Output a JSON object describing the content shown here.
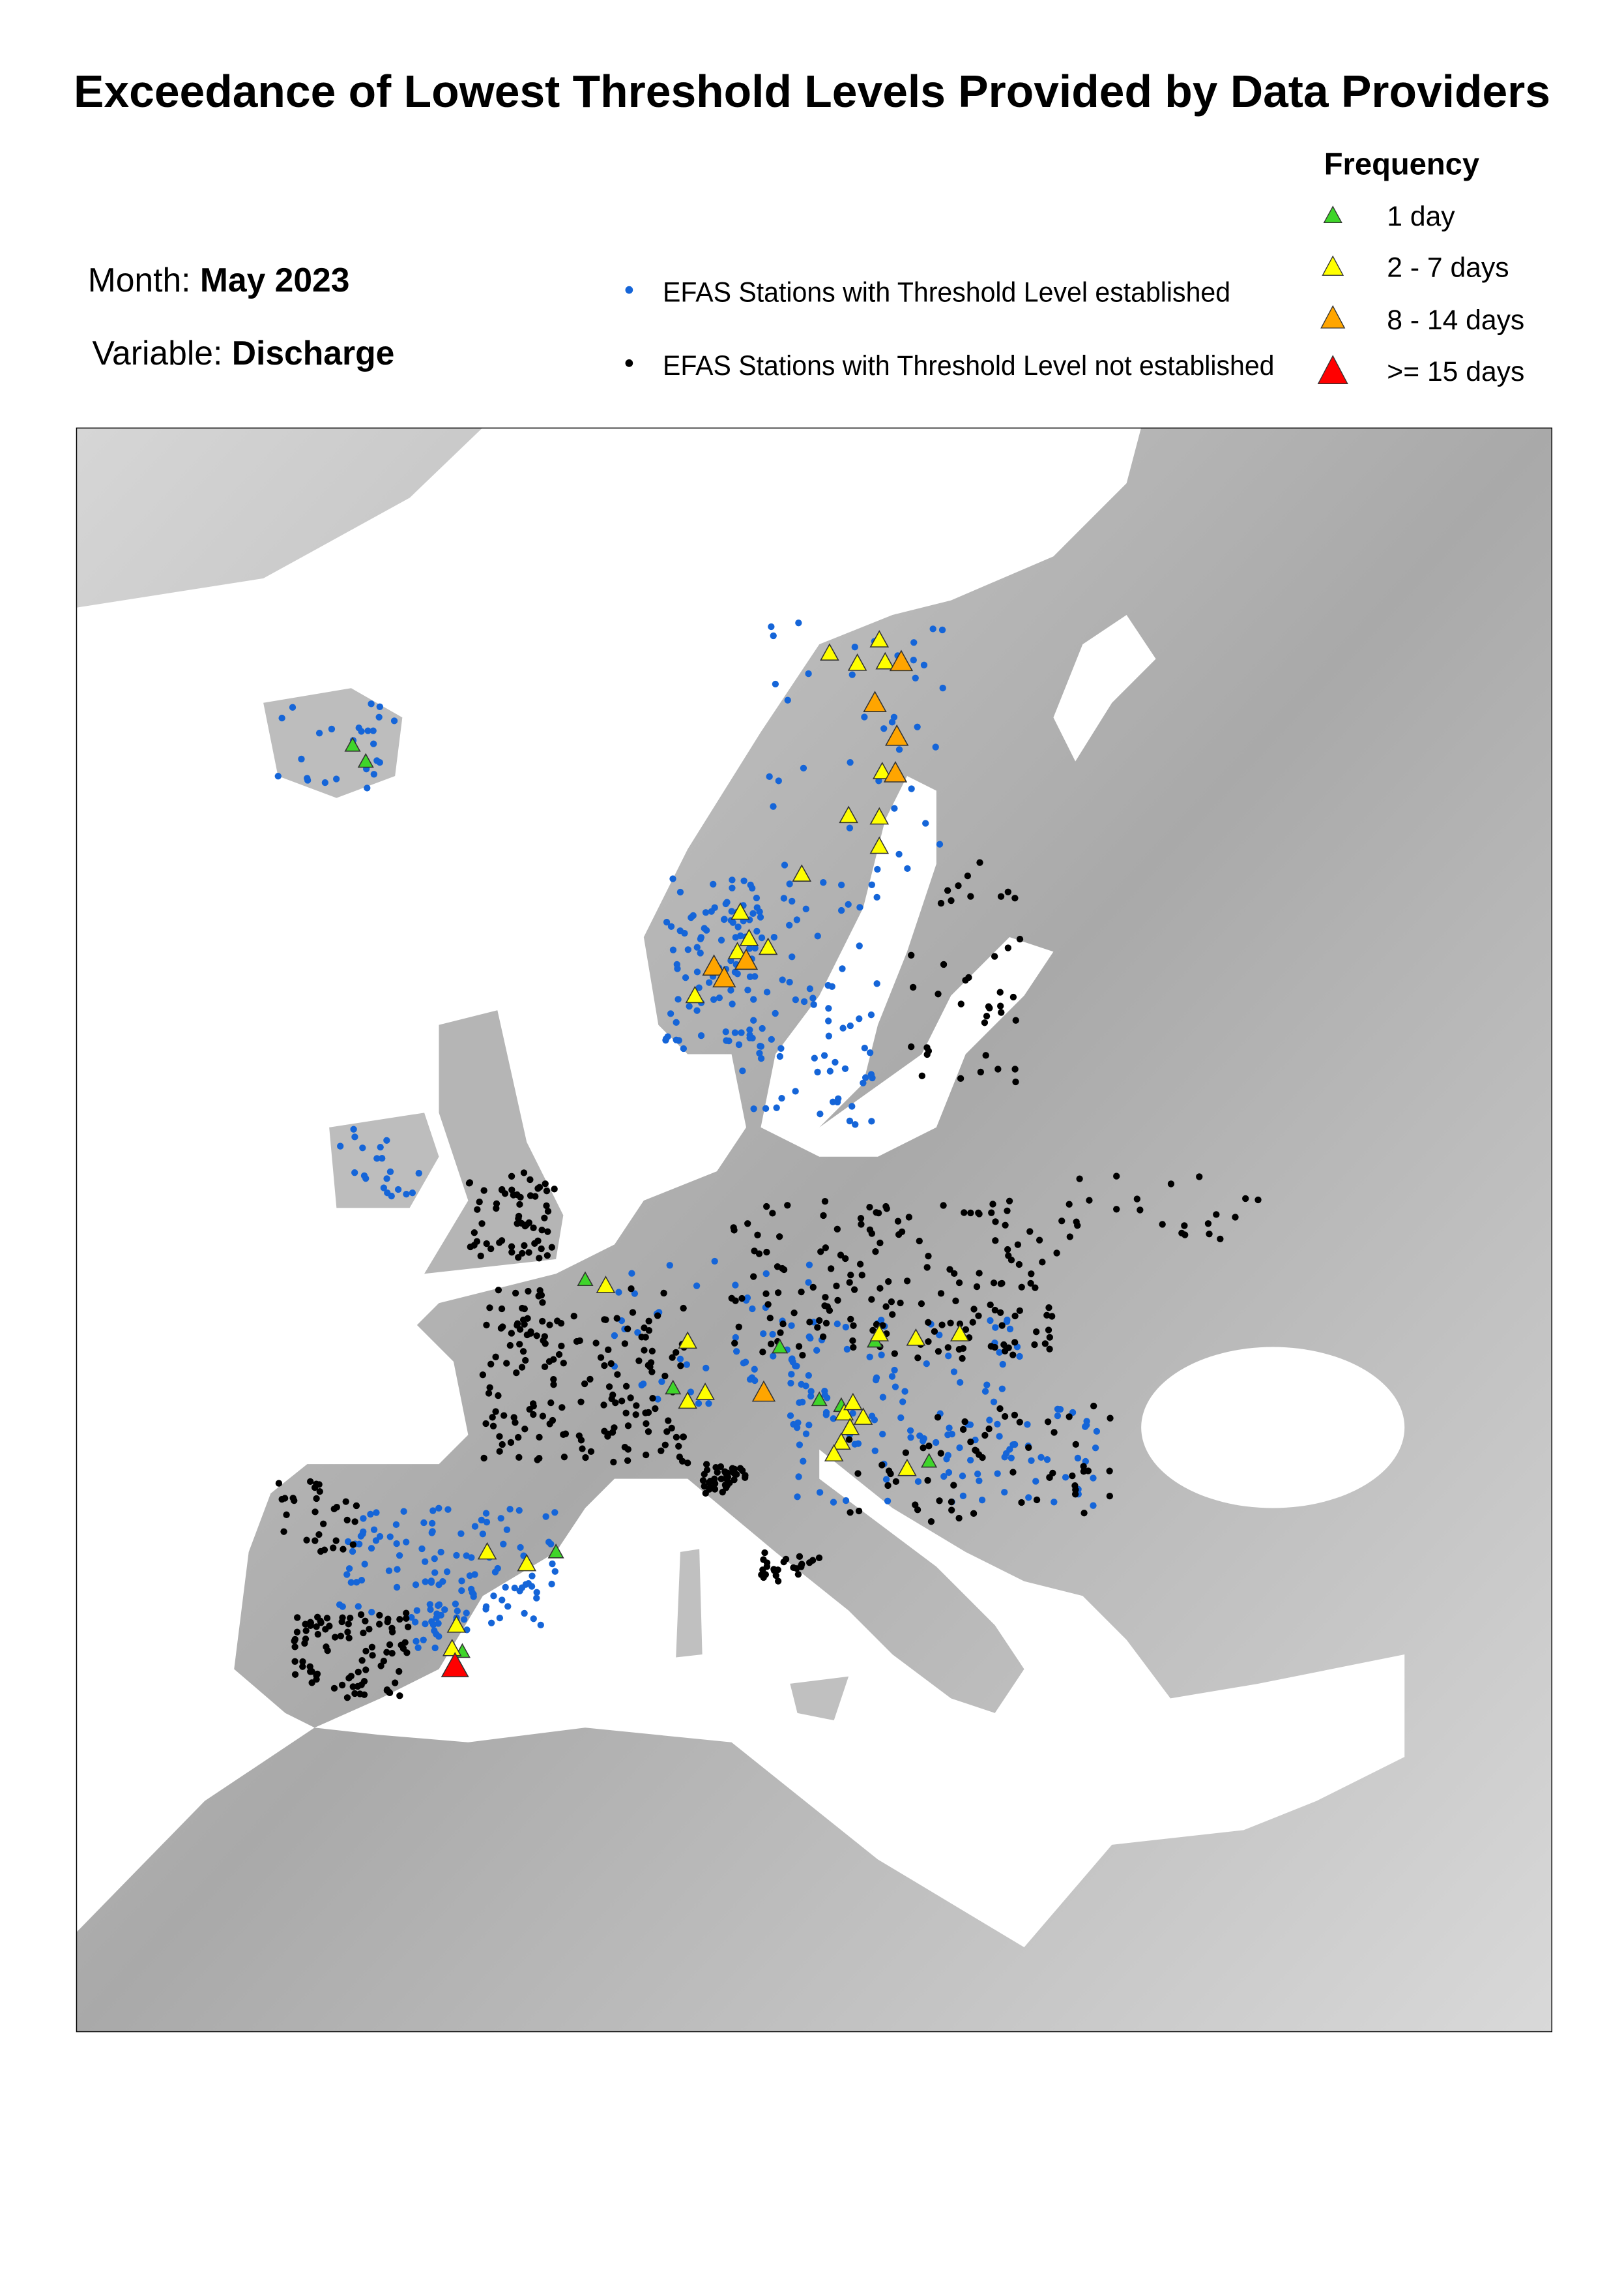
{
  "title": "Exceedance of Lowest Threshold Levels Provided by Data Providers",
  "info": {
    "month_label": "Month:",
    "month_value": "May 2023",
    "variable_label": "Variable:",
    "variable_value": "Discharge"
  },
  "station_legend": [
    {
      "label": "EFAS Stations with Threshold Level established",
      "color": "#1565d8"
    },
    {
      "label": "EFAS Stations with Threshold Level not established",
      "color": "#000000"
    }
  ],
  "frequency_legend": {
    "title": "Frequency",
    "items": [
      {
        "label": "1 day",
        "color": "#3fd52a"
      },
      {
        "label": "2 - 7 days",
        "color": "#ffff00"
      },
      {
        "label": "8 - 14 days",
        "color": "#ffa500"
      },
      {
        "label": ">= 15 days",
        "color": "#ff0000"
      }
    ]
  },
  "colors": {
    "land": "#b9b9b9",
    "water": "#ffffff",
    "frame": "#000000"
  }
}
